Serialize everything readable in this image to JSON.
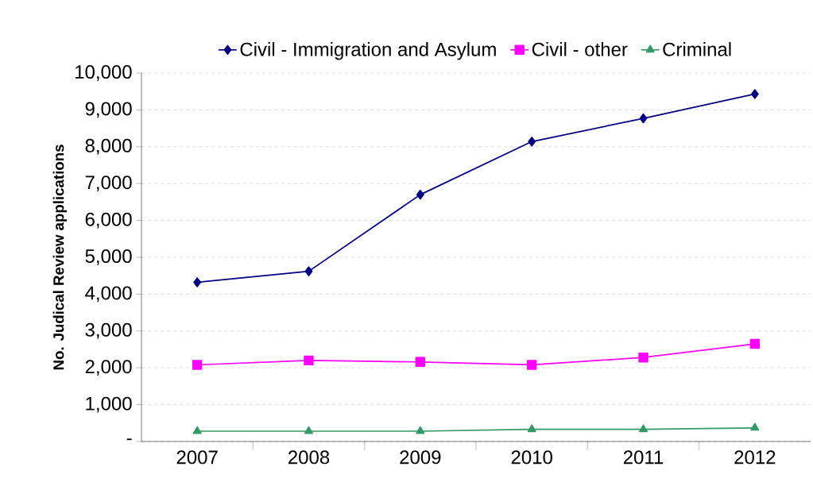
{
  "chart_data": {
    "type": "line",
    "ylabel": "No. Judical Review applications",
    "categories": [
      "2007",
      "2008",
      "2009",
      "2010",
      "2011",
      "2012"
    ],
    "series": [
      {
        "name": "Civil - Immigration and Asylum",
        "color": "#000080",
        "marker": "diamond",
        "values": [
          4320,
          4620,
          6700,
          8140,
          8770,
          9430
        ]
      },
      {
        "name": "Civil - other",
        "color": "#ff00ff",
        "marker": "square",
        "values": [
          2080,
          2200,
          2160,
          2080,
          2280,
          2650
        ]
      },
      {
        "name": "Criminal",
        "color": "#339966",
        "marker": "triangle",
        "values": [
          280,
          280,
          280,
          330,
          330,
          370
        ]
      }
    ],
    "ylim": [
      0,
      10000
    ],
    "yticks": [
      {
        "value": 0,
        "label": "-"
      },
      {
        "value": 1000,
        "label": "1,000"
      },
      {
        "value": 2000,
        "label": "2,000"
      },
      {
        "value": 3000,
        "label": "3,000"
      },
      {
        "value": 4000,
        "label": "4,000"
      },
      {
        "value": 5000,
        "label": "5,000"
      },
      {
        "value": 6000,
        "label": "6,000"
      },
      {
        "value": 7000,
        "label": "7,000"
      },
      {
        "value": 8000,
        "label": "8,000"
      },
      {
        "value": 9000,
        "label": "9,000"
      },
      {
        "value": 10000,
        "label": "10,000"
      }
    ],
    "grid": "y",
    "legend": "top",
    "line_style": "solid"
  }
}
